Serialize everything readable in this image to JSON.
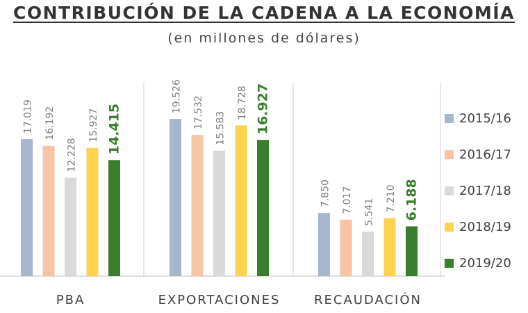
{
  "title": "CONTRIBUCIÓN DE LA CADENA A LA ECONOMÍA",
  "subtitle": "(en millones de dólares)",
  "chart_data": {
    "type": "bar",
    "categories": [
      "PBA",
      "EXPORTACIONES",
      "RECAUDACIÓN"
    ],
    "series": [
      {
        "name": "2015/16",
        "color": "#a5b6cd",
        "values": [
          17019,
          19526,
          7850
        ],
        "labels": [
          "17.019",
          "19.526",
          "7.850"
        ]
      },
      {
        "name": "2016/17",
        "color": "#f7c4a6",
        "values": [
          16192,
          17532,
          7017
        ],
        "labels": [
          "16.192",
          "17.532",
          "7.017"
        ]
      },
      {
        "name": "2017/18",
        "color": "#d9d9d9",
        "values": [
          12228,
          15583,
          5541
        ],
        "labels": [
          "12.228",
          "15.583",
          "5.541"
        ]
      },
      {
        "name": "2018/19",
        "color": "#ffd34f",
        "values": [
          15927,
          18728,
          7210
        ],
        "labels": [
          "15.927",
          "18.728",
          "7.210"
        ]
      },
      {
        "name": "2019/20",
        "color": "#3b7d2e",
        "values": [
          14415,
          16927,
          6188
        ],
        "labels": [
          "14.415",
          "16.927",
          "6.188"
        ],
        "highlight": true
      }
    ],
    "legend": "right",
    "grid": false,
    "ylim": [
      0,
      22000
    ]
  }
}
